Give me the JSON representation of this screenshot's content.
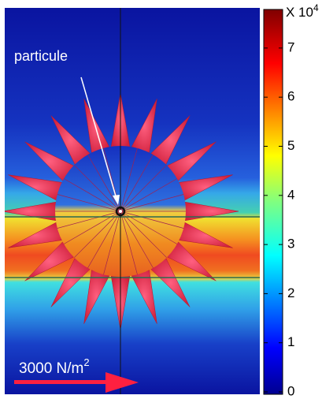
{
  "colorbar": {
    "ticks": [
      0,
      1,
      2,
      3,
      4,
      5,
      6,
      7
    ],
    "multiplier": "X 10",
    "exponent": "4"
  },
  "annotations": {
    "particle": "particule",
    "scale": "3000 N/m",
    "scale_exponent": "2"
  }
}
